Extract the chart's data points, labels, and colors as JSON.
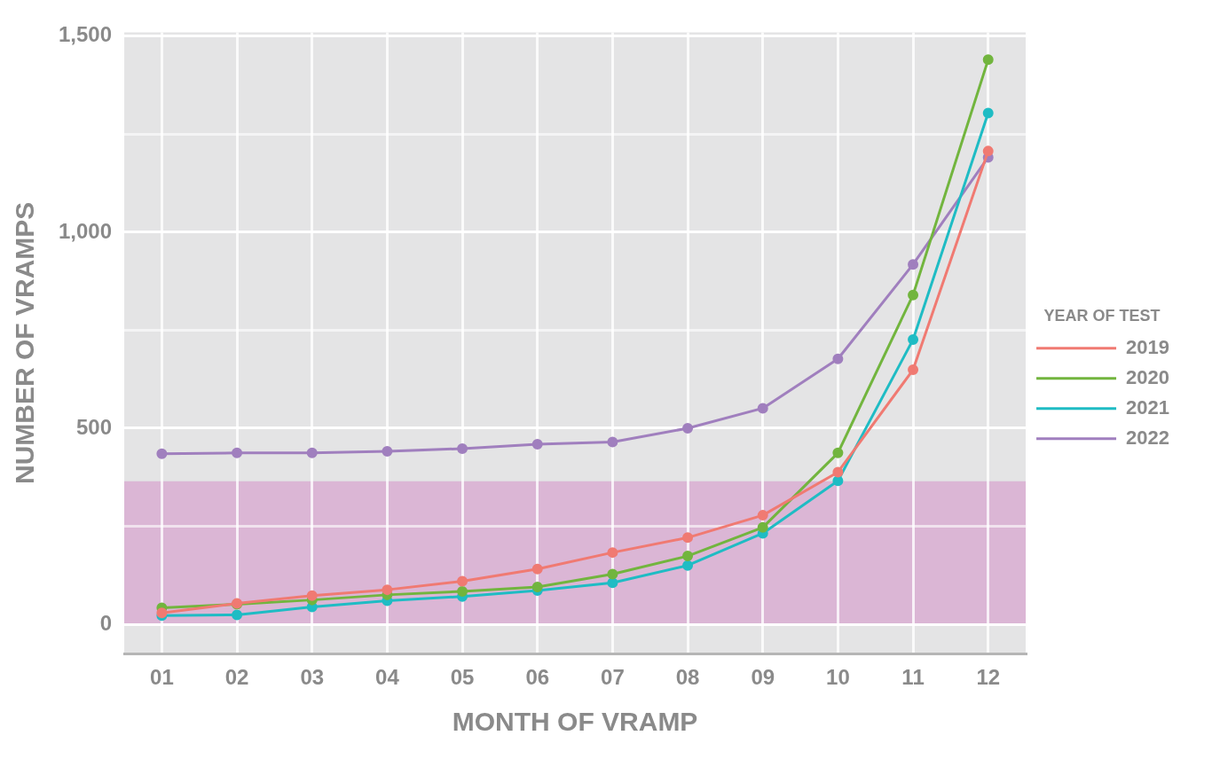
{
  "chart_data": {
    "type": "line",
    "xlabel": "MONTH OF VRAMP",
    "ylabel": "NUMBER OF VRAMPS",
    "legend_title": "YEAR OF TEST",
    "legend": "right",
    "grid": true,
    "marker": "circle",
    "line_style": "solid",
    "categories": [
      "01",
      "02",
      "03",
      "04",
      "05",
      "06",
      "07",
      "08",
      "09",
      "10",
      "11",
      "12"
    ],
    "ylim": [
      -75,
      1510
    ],
    "yticks": [
      0,
      {
        "value": 250,
        "label": null
      },
      500,
      {
        "value": 750,
        "label": null
      },
      {
        "value": 1000,
        "label": "1,000"
      },
      {
        "value": 1250,
        "label": null
      },
      {
        "value": 1500,
        "label": "1,500"
      }
    ],
    "series": [
      {
        "name": "2019",
        "color": "#f07a72",
        "values": [
          29,
          53,
          73,
          88,
          110,
          141,
          183,
          221,
          278,
          388,
          649,
          1207
        ]
      },
      {
        "name": "2020",
        "color": "#72b53e",
        "values": [
          42,
          51,
          62,
          75,
          84,
          95,
          128,
          174,
          247,
          437,
          840,
          1440
        ]
      },
      {
        "name": "2021",
        "color": "#1fbcc4",
        "values": [
          22,
          24,
          44,
          60,
          71,
          86,
          106,
          150,
          232,
          366,
          726,
          1304
        ]
      },
      {
        "name": "2022",
        "color": "#a07fbe",
        "values": [
          435,
          437,
          437,
          441,
          448,
          459,
          465,
          500,
          551,
          677,
          918,
          1191
        ]
      }
    ],
    "bands": [
      {
        "axis": "y",
        "from": 0,
        "to": 365,
        "color": "#d9b0d3"
      }
    ]
  }
}
